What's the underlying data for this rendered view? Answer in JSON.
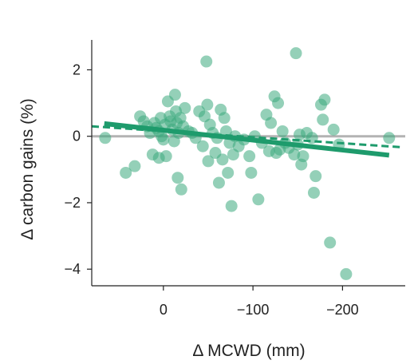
{
  "chart_data": {
    "type": "scatter",
    "xlabel": "Δ MCWD (mm)",
    "ylabel": "Δ carbon gains (%)",
    "x_axis": "reversed",
    "xlim": [
      80,
      -270
    ],
    "ylim": [
      -4.5,
      2.9
    ],
    "xticks": [
      0,
      -100,
      -200
    ],
    "xtick_labels": [
      "0",
      "−100",
      "−200"
    ],
    "yticks": [
      2,
      0,
      -2,
      -4
    ],
    "ytick_labels": [
      "2",
      "0",
      "−2",
      "−4"
    ],
    "reference_line": {
      "y": 0,
      "color": "#b3b3b3"
    },
    "colors": {
      "points": "#3daa7e",
      "fit": "#1e9b6c"
    },
    "points": [
      {
        "x": 65,
        "y": -0.05
      },
      {
        "x": 42,
        "y": -1.1
      },
      {
        "x": 32,
        "y": -0.9
      },
      {
        "x": 26,
        "y": 0.6
      },
      {
        "x": 22,
        "y": 0.45
      },
      {
        "x": 18,
        "y": 0.3
      },
      {
        "x": 15,
        "y": 0.1
      },
      {
        "x": 12,
        "y": -0.55
      },
      {
        "x": 10,
        "y": 0.4
      },
      {
        "x": 8,
        "y": 0.25
      },
      {
        "x": 5,
        "y": 0.15
      },
      {
        "x": 5,
        "y": -0.65
      },
      {
        "x": 3,
        "y": 0.55
      },
      {
        "x": 2,
        "y": 0.0
      },
      {
        "x": 0,
        "y": -0.1
      },
      {
        "x": -2,
        "y": 0.35
      },
      {
        "x": -3,
        "y": -0.6
      },
      {
        "x": -5,
        "y": 1.05
      },
      {
        "x": -7,
        "y": 0.6
      },
      {
        "x": -8,
        "y": 0.45
      },
      {
        "x": -10,
        "y": 0.2
      },
      {
        "x": -12,
        "y": -0.15
      },
      {
        "x": -13,
        "y": 1.25
      },
      {
        "x": -14,
        "y": 0.75
      },
      {
        "x": -15,
        "y": 0.4
      },
      {
        "x": -16,
        "y": -1.25
      },
      {
        "x": -17,
        "y": 0.1
      },
      {
        "x": -19,
        "y": 0.55
      },
      {
        "x": -20,
        "y": -1.6
      },
      {
        "x": -22,
        "y": 0.3
      },
      {
        "x": -24,
        "y": 0.85
      },
      {
        "x": -28,
        "y": 0.15
      },
      {
        "x": -32,
        "y": 0.1
      },
      {
        "x": -36,
        "y": -0.05
      },
      {
        "x": -40,
        "y": 0.75
      },
      {
        "x": -44,
        "y": -0.3
      },
      {
        "x": -46,
        "y": 0.6
      },
      {
        "x": -48,
        "y": 2.25
      },
      {
        "x": -49,
        "y": 0.95
      },
      {
        "x": -50,
        "y": -0.75
      },
      {
        "x": -52,
        "y": 0.35
      },
      {
        "x": -55,
        "y": 0.1
      },
      {
        "x": -58,
        "y": -0.5
      },
      {
        "x": -60,
        "y": -0.05
      },
      {
        "x": -62,
        "y": -1.4
      },
      {
        "x": -64,
        "y": 0.8
      },
      {
        "x": -66,
        "y": -0.7
      },
      {
        "x": -68,
        "y": 0.55
      },
      {
        "x": -70,
        "y": 0.15
      },
      {
        "x": -72,
        "y": -1.1
      },
      {
        "x": -74,
        "y": -0.2
      },
      {
        "x": -76,
        "y": -2.1
      },
      {
        "x": -78,
        "y": -0.55
      },
      {
        "x": -80,
        "y": 0.0
      },
      {
        "x": -84,
        "y": -0.3
      },
      {
        "x": -90,
        "y": -0.1
      },
      {
        "x": -96,
        "y": -0.6
      },
      {
        "x": -98,
        "y": -1.1
      },
      {
        "x": -102,
        "y": 0.0
      },
      {
        "x": -106,
        "y": -1.9
      },
      {
        "x": -110,
        "y": -0.2
      },
      {
        "x": -115,
        "y": 0.65
      },
      {
        "x": -118,
        "y": -0.45
      },
      {
        "x": -120,
        "y": 0.4
      },
      {
        "x": -124,
        "y": 1.2
      },
      {
        "x": -126,
        "y": -0.5
      },
      {
        "x": -128,
        "y": 1.0
      },
      {
        "x": -130,
        "y": -0.4
      },
      {
        "x": -133,
        "y": 0.15
      },
      {
        "x": -136,
        "y": -0.2
      },
      {
        "x": -140,
        "y": -0.35
      },
      {
        "x": -146,
        "y": -0.55
      },
      {
        "x": -148,
        "y": 2.5
      },
      {
        "x": -150,
        "y": -0.25
      },
      {
        "x": -152,
        "y": 0.05
      },
      {
        "x": -154,
        "y": -0.85
      },
      {
        "x": -156,
        "y": -0.6
      },
      {
        "x": -160,
        "y": 0.1
      },
      {
        "x": -166,
        "y": -0.05
      },
      {
        "x": -168,
        "y": -1.7
      },
      {
        "x": -170,
        "y": -1.2
      },
      {
        "x": -176,
        "y": 0.95
      },
      {
        "x": -178,
        "y": 0.5
      },
      {
        "x": -180,
        "y": 1.1
      },
      {
        "x": -186,
        "y": -3.2
      },
      {
        "x": -190,
        "y": 0.2
      },
      {
        "x": -196,
        "y": -0.25
      },
      {
        "x": -204,
        "y": -4.15
      },
      {
        "x": -252,
        "y": -0.05
      }
    ],
    "fit_solid": {
      "x": [
        66,
        -252
      ],
      "y": [
        0.38,
        -0.57
      ]
    },
    "fit_dashed": {
      "x": [
        80,
        -266
      ],
      "y": [
        0.3,
        -0.33
      ]
    }
  }
}
